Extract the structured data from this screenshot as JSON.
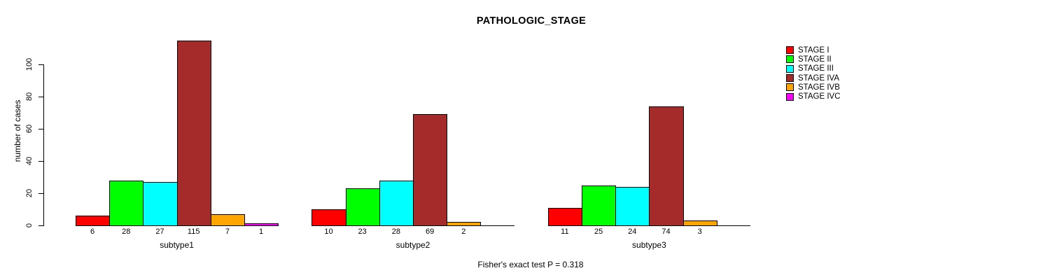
{
  "chart_data": {
    "type": "bar",
    "title": "PATHOLOGIC_STAGE",
    "ylabel": "number of cases",
    "footer": "Fisher's exact test P = 0.318",
    "ylim": [
      0,
      100
    ],
    "yticks": [
      0,
      20,
      40,
      60,
      80,
      100
    ],
    "grid": false,
    "legend_position": "right",
    "categories": [
      "subtype1",
      "subtype2",
      "subtype3"
    ],
    "series": [
      {
        "name": "STAGE I",
        "color": "#FF0000",
        "values": [
          6,
          10,
          11
        ]
      },
      {
        "name": "STAGE II",
        "color": "#00FF00",
        "values": [
          28,
          23,
          25
        ]
      },
      {
        "name": "STAGE III",
        "color": "#00FFFF",
        "values": [
          27,
          28,
          24
        ]
      },
      {
        "name": "STAGE IVA",
        "color": "#A52A2A",
        "values": [
          115,
          69,
          74
        ]
      },
      {
        "name": "STAGE IVB",
        "color": "#FFA500",
        "values": [
          7,
          2,
          3
        ]
      },
      {
        "name": "STAGE IVC",
        "color": "#FF00FF",
        "values": [
          1,
          0,
          0
        ]
      }
    ],
    "bar_value_labels_shown": true,
    "axis_color": "#000000",
    "text_color": "#000000",
    "background_color": "#FFFFFF"
  }
}
